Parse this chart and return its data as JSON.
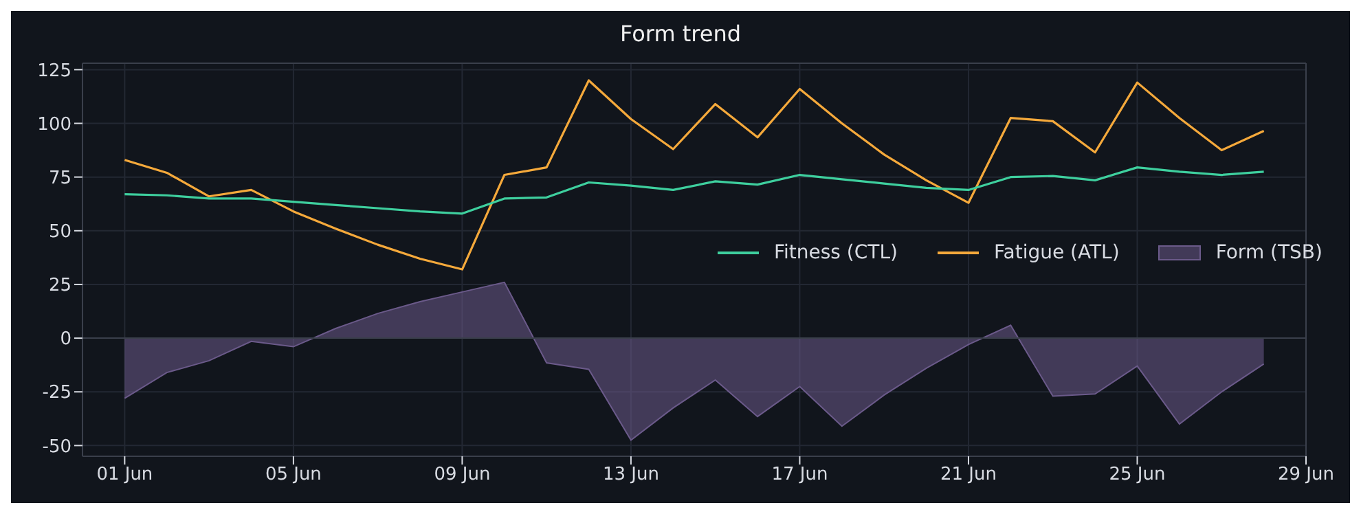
{
  "chart_data": {
    "type": "line",
    "title": "Form trend",
    "x": [
      "--06-01",
      "--06-02",
      "--06-03",
      "--06-04",
      "--06-05",
      "--06-06",
      "--06-07",
      "--06-08",
      "--06-09",
      "--06-10",
      "--06-11",
      "--06-12",
      "--06-13",
      "--06-14",
      "--06-15",
      "--06-16",
      "--06-17",
      "--06-18",
      "--06-19",
      "--06-20",
      "--06-21",
      "--06-22",
      "--06-23",
      "--06-24",
      "--06-25",
      "--06-26",
      "--06-27",
      "--06-28"
    ],
    "series": [
      {
        "name": "Fitness (CTL)",
        "color": "#3ecf9e",
        "values": [
          67,
          66.5,
          65,
          65,
          63.5,
          62,
          60.5,
          59,
          58,
          65,
          65.5,
          72.5,
          71,
          69,
          73,
          71.5,
          76,
          74,
          72,
          70,
          69,
          75,
          75.5,
          73.5,
          79.5,
          77.5,
          76,
          77.5
        ]
      },
      {
        "name": "Fatigue (ATL)",
        "color": "#f5a93b",
        "values": [
          83,
          77,
          66,
          69,
          59,
          51,
          43.5,
          37,
          32,
          76,
          79.5,
          120,
          102,
          88,
          109,
          93.5,
          116,
          100,
          85.5,
          73.5,
          63,
          102.5,
          101,
          86.5,
          119,
          102.5,
          87.5,
          96.5
        ]
      },
      {
        "name": "Form (TSB)",
        "type": "area",
        "color": "#6b5a8a",
        "values": [
          -28,
          -16,
          -10.5,
          -1.5,
          -4,
          4.5,
          11.5,
          17,
          21.5,
          26,
          -11.5,
          -14.5,
          -47.5,
          -32.5,
          -19.5,
          -36.5,
          -22.5,
          -41,
          -26.5,
          -14,
          -3,
          6,
          -27,
          -26,
          -13,
          -40,
          -25,
          -12
        ]
      }
    ],
    "xlim": [
      "--05-31",
      "--06-29"
    ],
    "xticks": [
      {
        "value": "--06-01",
        "label": "01 Jun"
      },
      {
        "value": "--06-05",
        "label": "05 Jun"
      },
      {
        "value": "--06-09",
        "label": "09 Jun"
      },
      {
        "value": "--06-13",
        "label": "13 Jun"
      },
      {
        "value": "--06-17",
        "label": "17 Jun"
      },
      {
        "value": "--06-21",
        "label": "21 Jun"
      },
      {
        "value": "--06-25",
        "label": "25 Jun"
      },
      {
        "value": "--06-29",
        "label": "29 Jun"
      }
    ],
    "ylim": [
      -55,
      128
    ],
    "yticks": [
      -50,
      -25,
      0,
      25,
      50,
      75,
      100,
      125
    ],
    "ref_lines": [
      {
        "axis": "y",
        "value": 0,
        "color": "#3a3f4b"
      }
    ],
    "grid": true,
    "legend": "right"
  }
}
